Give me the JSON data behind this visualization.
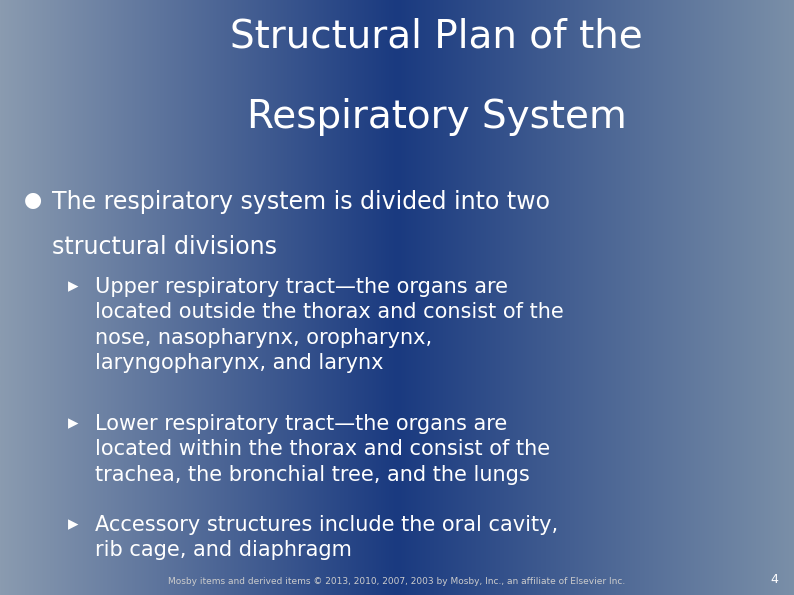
{
  "title_line1": "Structural Plan of the",
  "title_line2": "Respiratory System",
  "title_fontsize": 28,
  "title_color": "#ffffff",
  "bullet_text_line1": "The respiratory system is divided into two",
  "bullet_text_line2": "structural divisions",
  "bullet_fontsize": 17,
  "bullet_color": "#ffffff",
  "bullet_marker": "●",
  "sub_bullets": [
    "Upper respiratory tract—the organs are\nlocated outside the thorax and consist of the\nnose, nasopharynx, oropharynx,\nlaryngopharynx, and larynx",
    "Lower respiratory tract—the organs are\nlocated within the thorax and consist of the\ntrachea, the bronchial tree, and the lungs",
    "Accessory structures include the oral cavity,\nrib cage, and diaphragm"
  ],
  "sub_bullet_fontsize": 15,
  "sub_bullet_color": "#ffffff",
  "sub_bullet_marker": "▸",
  "footer_text": "Mosby items and derived items © 2013, 2010, 2007, 2003 by Mosby, Inc., an affiliate of Elsevier Inc.",
  "footer_fontsize": 6.5,
  "footer_color": "#cccccc",
  "page_number": "4",
  "page_number_fontsize": 9,
  "page_number_color": "#ffffff",
  "bg_left_color": "#8a9bb0",
  "bg_center_color": "#1a3a80",
  "bg_right_color": "#7a8fa8"
}
